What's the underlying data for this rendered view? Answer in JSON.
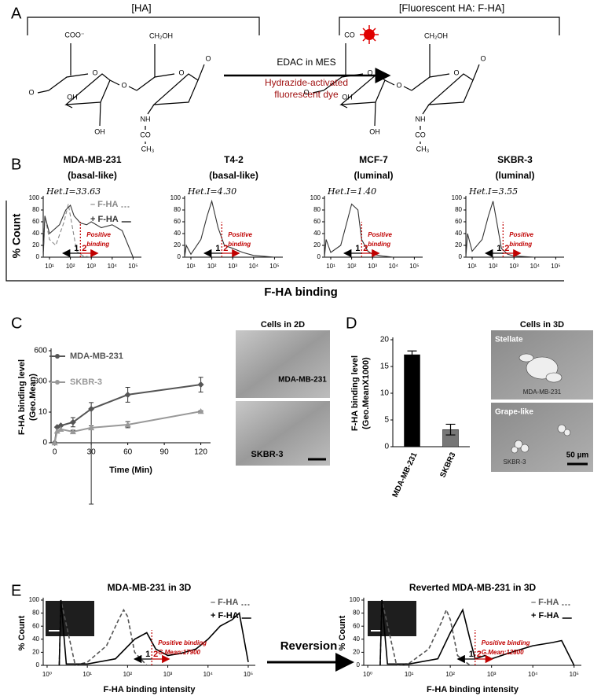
{
  "figure": {
    "panel_labels": [
      "A",
      "B",
      "C",
      "D",
      "E"
    ],
    "b_y_label": "% Count",
    "b_x_label": "F-HA binding",
    "reversion": "Reversion"
  },
  "diagram": {
    "left_title": "[HA]",
    "right_title": "[Fluorescent HA: F-HA]",
    "reagent": "EDAC in MES",
    "dye": [
      "Hydrazide-activated",
      "fluorescent dye"
    ],
    "left_labels": [
      "COO⁻",
      "O",
      "OH",
      "OH",
      "O",
      "CH₂OH",
      "O",
      "O",
      "NH",
      "CO",
      "CH₃",
      "O"
    ],
    "right_labels": [
      "CO",
      "O",
      "OH",
      "OH",
      "O",
      "CH₂OH",
      "O",
      "O",
      "NH",
      "CO",
      "CH₃",
      "O"
    ]
  },
  "images": {
    "c_title": "Cells in 2D",
    "c_top": "MDA-MB-231",
    "c_bottom": "SKBR-3",
    "d_title": "Cells in 3D",
    "d_top_label": "Stellate",
    "d_top_cell": "MDA-MB-231",
    "d_bottom_label": "Grape-like",
    "d_bottom_cell": "SKBR-3",
    "d_scale": "50 µm"
  },
  "chart_data": [
    {
      "type": "line",
      "title": "MDA-MB-231",
      "subtitle": "(basal-like)",
      "annotation": "Het.I=33.63",
      "positive_label": [
        "Positive",
        "binding"
      ],
      "arrow_labels": [
        "1",
        "2"
      ],
      "threshold": 300,
      "accent_color": "#c00000",
      "log_x": true,
      "xlim": [
        5,
        250000
      ],
      "xticks": [
        {
          "value": 10,
          "label": "10¹"
        },
        {
          "value": 100,
          "label": "10²"
        },
        {
          "value": 1000,
          "label": "10³"
        },
        {
          "value": 10000,
          "label": "10⁴"
        },
        {
          "value": 100000,
          "label": "10⁵"
        }
      ],
      "ylim": [
        0,
        100
      ],
      "yticks": [
        0,
        20,
        40,
        60,
        80,
        100
      ],
      "legend": true,
      "series": [
        {
          "name": "– F-HA",
          "color": "#888888",
          "dash": true,
          "x": [
            5,
            6,
            10,
            20,
            50,
            80,
            100,
            200,
            400,
            1000
          ],
          "values": [
            0,
            70,
            30,
            20,
            60,
            90,
            70,
            10,
            2,
            0
          ]
        },
        {
          "name": "+ F-HA",
          "color": "#333333",
          "x": [
            5,
            6,
            10,
            30,
            60,
            100,
            150,
            300,
            600,
            1000,
            3000,
            10000,
            30000,
            100000
          ],
          "values": [
            0,
            70,
            40,
            55,
            80,
            88,
            70,
            58,
            55,
            60,
            50,
            55,
            45,
            0
          ]
        }
      ]
    },
    {
      "type": "line",
      "title": "T4-2",
      "subtitle": "(basal-like)",
      "annotation": "Het.I=4.30",
      "positive_label": [
        "Positive",
        "binding"
      ],
      "arrow_labels": [
        "1",
        "2"
      ],
      "threshold": 300,
      "accent_color": "#c00000",
      "log_x": true,
      "xlim": [
        5,
        250000
      ],
      "xticks": [
        {
          "value": 10,
          "label": "10¹"
        },
        {
          "value": 100,
          "label": "10²"
        },
        {
          "value": 1000,
          "label": "10³"
        },
        {
          "value": 10000,
          "label": "10⁴"
        },
        {
          "value": 100000,
          "label": "10⁵"
        }
      ],
      "ylim": [
        0,
        100
      ],
      "yticks": [
        0,
        20,
        40,
        60,
        80,
        100
      ],
      "legend": false,
      "series": [
        {
          "color": "#333333",
          "x": [
            5,
            6,
            10,
            30,
            60,
            100,
            200,
            400,
            1000,
            3000,
            10000,
            100000
          ],
          "values": [
            0,
            20,
            5,
            30,
            70,
            95,
            50,
            20,
            15,
            8,
            3,
            0
          ]
        }
      ]
    },
    {
      "type": "line",
      "title": "MCF-7",
      "subtitle": "(luminal)",
      "annotation": "Het.I=1.40",
      "positive_label": [
        "Positive",
        "binding"
      ],
      "arrow_labels": [
        "1",
        "2"
      ],
      "threshold": 300,
      "accent_color": "#c00000",
      "log_x": true,
      "xlim": [
        5,
        250000
      ],
      "xticks": [
        {
          "value": 10,
          "label": "10¹"
        },
        {
          "value": 100,
          "label": "10²"
        },
        {
          "value": 1000,
          "label": "10³"
        },
        {
          "value": 10000,
          "label": "10⁴"
        },
        {
          "value": 100000,
          "label": "10⁵"
        }
      ],
      "ylim": [
        0,
        100
      ],
      "yticks": [
        0,
        20,
        40,
        60,
        80,
        100
      ],
      "legend": false,
      "series": [
        {
          "color": "#333333",
          "x": [
            5,
            6,
            10,
            30,
            60,
            100,
            200,
            300,
            600,
            1000,
            3000,
            10000
          ],
          "values": [
            0,
            30,
            8,
            20,
            60,
            90,
            80,
            30,
            10,
            5,
            2,
            0
          ]
        }
      ]
    },
    {
      "type": "line",
      "title": "SKBR-3",
      "subtitle": "(luminal)",
      "annotation": "Het.I=3.55",
      "positive_label": [
        "Positive",
        "binding"
      ],
      "arrow_labels": [
        "1",
        "2"
      ],
      "threshold": 300,
      "accent_color": "#c00000",
      "log_x": true,
      "xlim": [
        5,
        250000
      ],
      "xticks": [
        {
          "value": 10,
          "label": "10¹"
        },
        {
          "value": 100,
          "label": "10²"
        },
        {
          "value": 1000,
          "label": "10³"
        },
        {
          "value": 10000,
          "label": "10⁴"
        },
        {
          "value": 100000,
          "label": "10⁵"
        }
      ],
      "ylim": [
        0,
        100
      ],
      "yticks": [
        0,
        20,
        40,
        60,
        80,
        100
      ],
      "legend": false,
      "series": [
        {
          "color": "#333333",
          "x": [
            5,
            6,
            10,
            30,
            60,
            100,
            150,
            250,
            500,
            1000,
            10000
          ],
          "values": [
            0,
            40,
            10,
            30,
            70,
            95,
            60,
            15,
            5,
            2,
            0
          ]
        }
      ]
    },
    {
      "type": "line",
      "ylabel": [
        "F-HA binding level",
        "(Geo.Mean)"
      ],
      "xlabel": "Time (Min)",
      "xlim": [
        -3,
        128
      ],
      "xticks": [
        0,
        30,
        60,
        90,
        120
      ],
      "ylim": [
        0,
        600
      ],
      "yticks": [
        0,
        10,
        300,
        600
      ],
      "y_scale": "broken",
      "markers": true,
      "legend": true,
      "series": [
        {
          "name": "MDA-MB-231",
          "color": "#555555",
          "marker": "diamond",
          "x": [
            0,
            2,
            5,
            15,
            30,
            60,
            120
          ],
          "values": [
            0,
            5.1,
            5.6,
            6.7,
            40,
            174,
            270
          ],
          "errors": [
            null,
            null,
            null,
            1.5,
            60,
            70,
            70
          ]
        },
        {
          "name": "SKBR-3",
          "color": "#999999",
          "marker": "triangle",
          "x": [
            0,
            2,
            5,
            15,
            30,
            60,
            120
          ],
          "values": [
            0,
            3.8,
            4.4,
            3.6,
            4.9,
            5.9,
            17
          ],
          "errors": [
            null,
            null,
            null,
            0.5,
            0.6,
            1,
            6
          ]
        }
      ]
    },
    {
      "type": "bar",
      "ylabel": [
        "F-HA binding level",
        "(Geo.MeanX1000)"
      ],
      "categories": [
        "MDA-MB-231",
        "SKBR3"
      ],
      "values": [
        17.2,
        3.2
      ],
      "errors": [
        0.7,
        1.0
      ],
      "colors": [
        "#000000",
        "#777777"
      ],
      "ylim": [
        0,
        20
      ],
      "yticks": [
        0,
        5,
        10,
        15,
        20
      ]
    },
    {
      "type": "line",
      "title": "MDA-MB-231 in 3D",
      "ylabel": "% Count",
      "xlabel": "F-HA binding intensity",
      "annotation": [
        "Positive binding",
        "G.Mean:17900"
      ],
      "arrow_labels": [
        "1",
        "2"
      ],
      "threshold": 400,
      "accent_color": "#c00000",
      "log_x": true,
      "xlim": [
        0.8,
        150000
      ],
      "xticks": [
        {
          "value": 1,
          "label": "10⁰"
        },
        {
          "value": 10,
          "label": "10¹"
        },
        {
          "value": 100,
          "label": "10²"
        },
        {
          "value": 1000,
          "label": "10³"
        },
        {
          "value": 10000,
          "label": "10⁴"
        },
        {
          "value": 100000,
          "label": "10⁵"
        }
      ],
      "ylim": [
        0,
        100
      ],
      "yticks": [
        0,
        20,
        40,
        60,
        80,
        100
      ],
      "legend": true,
      "series": [
        {
          "name": "– F-HA",
          "color": "#555555",
          "dash": true,
          "x": [
            2,
            2.2,
            5,
            10,
            30,
            60,
            80,
            100,
            150,
            300
          ],
          "values": [
            0,
            100,
            0,
            5,
            30,
            70,
            85,
            75,
            20,
            0
          ]
        },
        {
          "name": "+ F-HA",
          "color": "#000000",
          "x": [
            2,
            2.2,
            3,
            10,
            50,
            150,
            300,
            500,
            1000,
            2000,
            5000,
            10000,
            20000,
            40000,
            60000,
            100000
          ],
          "values": [
            0,
            100,
            2,
            2,
            10,
            40,
            50,
            25,
            15,
            18,
            25,
            40,
            60,
            70,
            80,
            5
          ]
        }
      ]
    },
    {
      "type": "line",
      "title": "Reverted MDA-MB-231 in 3D",
      "ylabel": "% Count",
      "xlabel": "F-HA binding intensity",
      "annotation": [
        "Positive binding",
        "G.Mean:12800"
      ],
      "arrow_labels": [
        "1",
        "2"
      ],
      "threshold": 400,
      "accent_color": "#c00000",
      "log_x": true,
      "xlim": [
        0.8,
        150000
      ],
      "xticks": [
        {
          "value": 1,
          "label": "10⁰"
        },
        {
          "value": 10,
          "label": "10¹"
        },
        {
          "value": 100,
          "label": "10²"
        },
        {
          "value": 1000,
          "label": "10³"
        },
        {
          "value": 10000,
          "label": "10⁴"
        },
        {
          "value": 100000,
          "label": "10⁵"
        }
      ],
      "ylim": [
        0,
        100
      ],
      "yticks": [
        0,
        20,
        40,
        60,
        80,
        100
      ],
      "legend": true,
      "series": [
        {
          "name": "– F-HA",
          "color": "#555555",
          "dash": true,
          "x": [
            2,
            2.2,
            5,
            10,
            30,
            60,
            80,
            100,
            150,
            300
          ],
          "values": [
            0,
            100,
            0,
            3,
            25,
            65,
            85,
            70,
            15,
            0
          ]
        },
        {
          "name": "+ F-HA",
          "color": "#000000",
          "x": [
            2,
            2.2,
            3,
            10,
            50,
            100,
            200,
            300,
            400,
            700,
            1000,
            3000,
            10000,
            30000,
            50000,
            100000
          ],
          "values": [
            0,
            100,
            2,
            2,
            10,
            50,
            85,
            40,
            10,
            15,
            10,
            20,
            30,
            35,
            38,
            0
          ]
        }
      ]
    }
  ]
}
